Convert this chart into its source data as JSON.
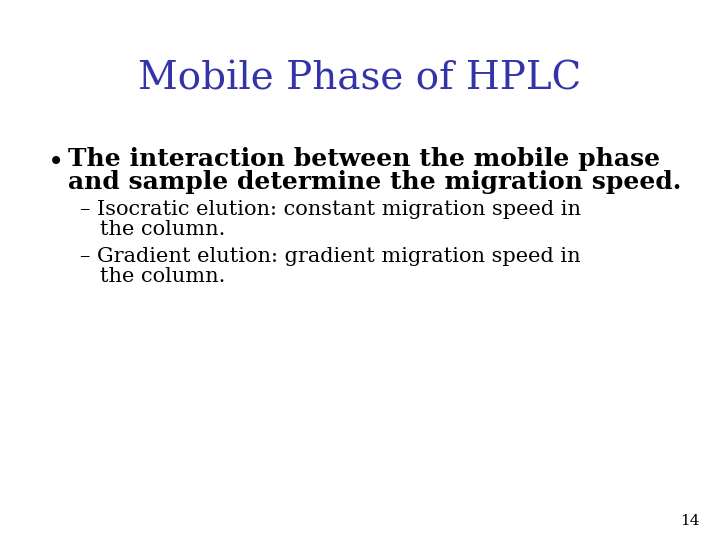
{
  "title": "Mobile Phase of HPLC",
  "title_color": "#3333AA",
  "title_fontsize": 28,
  "background_color": "#FFFFFF",
  "bullet_marker": "•",
  "bullet_text_line1": "The interaction between the mobile phase",
  "bullet_text_line2": "and sample determine the migration speed.",
  "bullet_fontsize": 18,
  "bullet_color": "#000000",
  "sub_bullet1_line1": "– Isocratic elution: constant migration speed in",
  "sub_bullet1_line2": "   the column.",
  "sub_bullet2_line1": "– Gradient elution: gradient migration speed in",
  "sub_bullet2_line2": "   the column.",
  "sub_bullet_fontsize": 15,
  "sub_bullet_color": "#000000",
  "page_number": "14",
  "page_number_fontsize": 11,
  "page_number_color": "#000000"
}
